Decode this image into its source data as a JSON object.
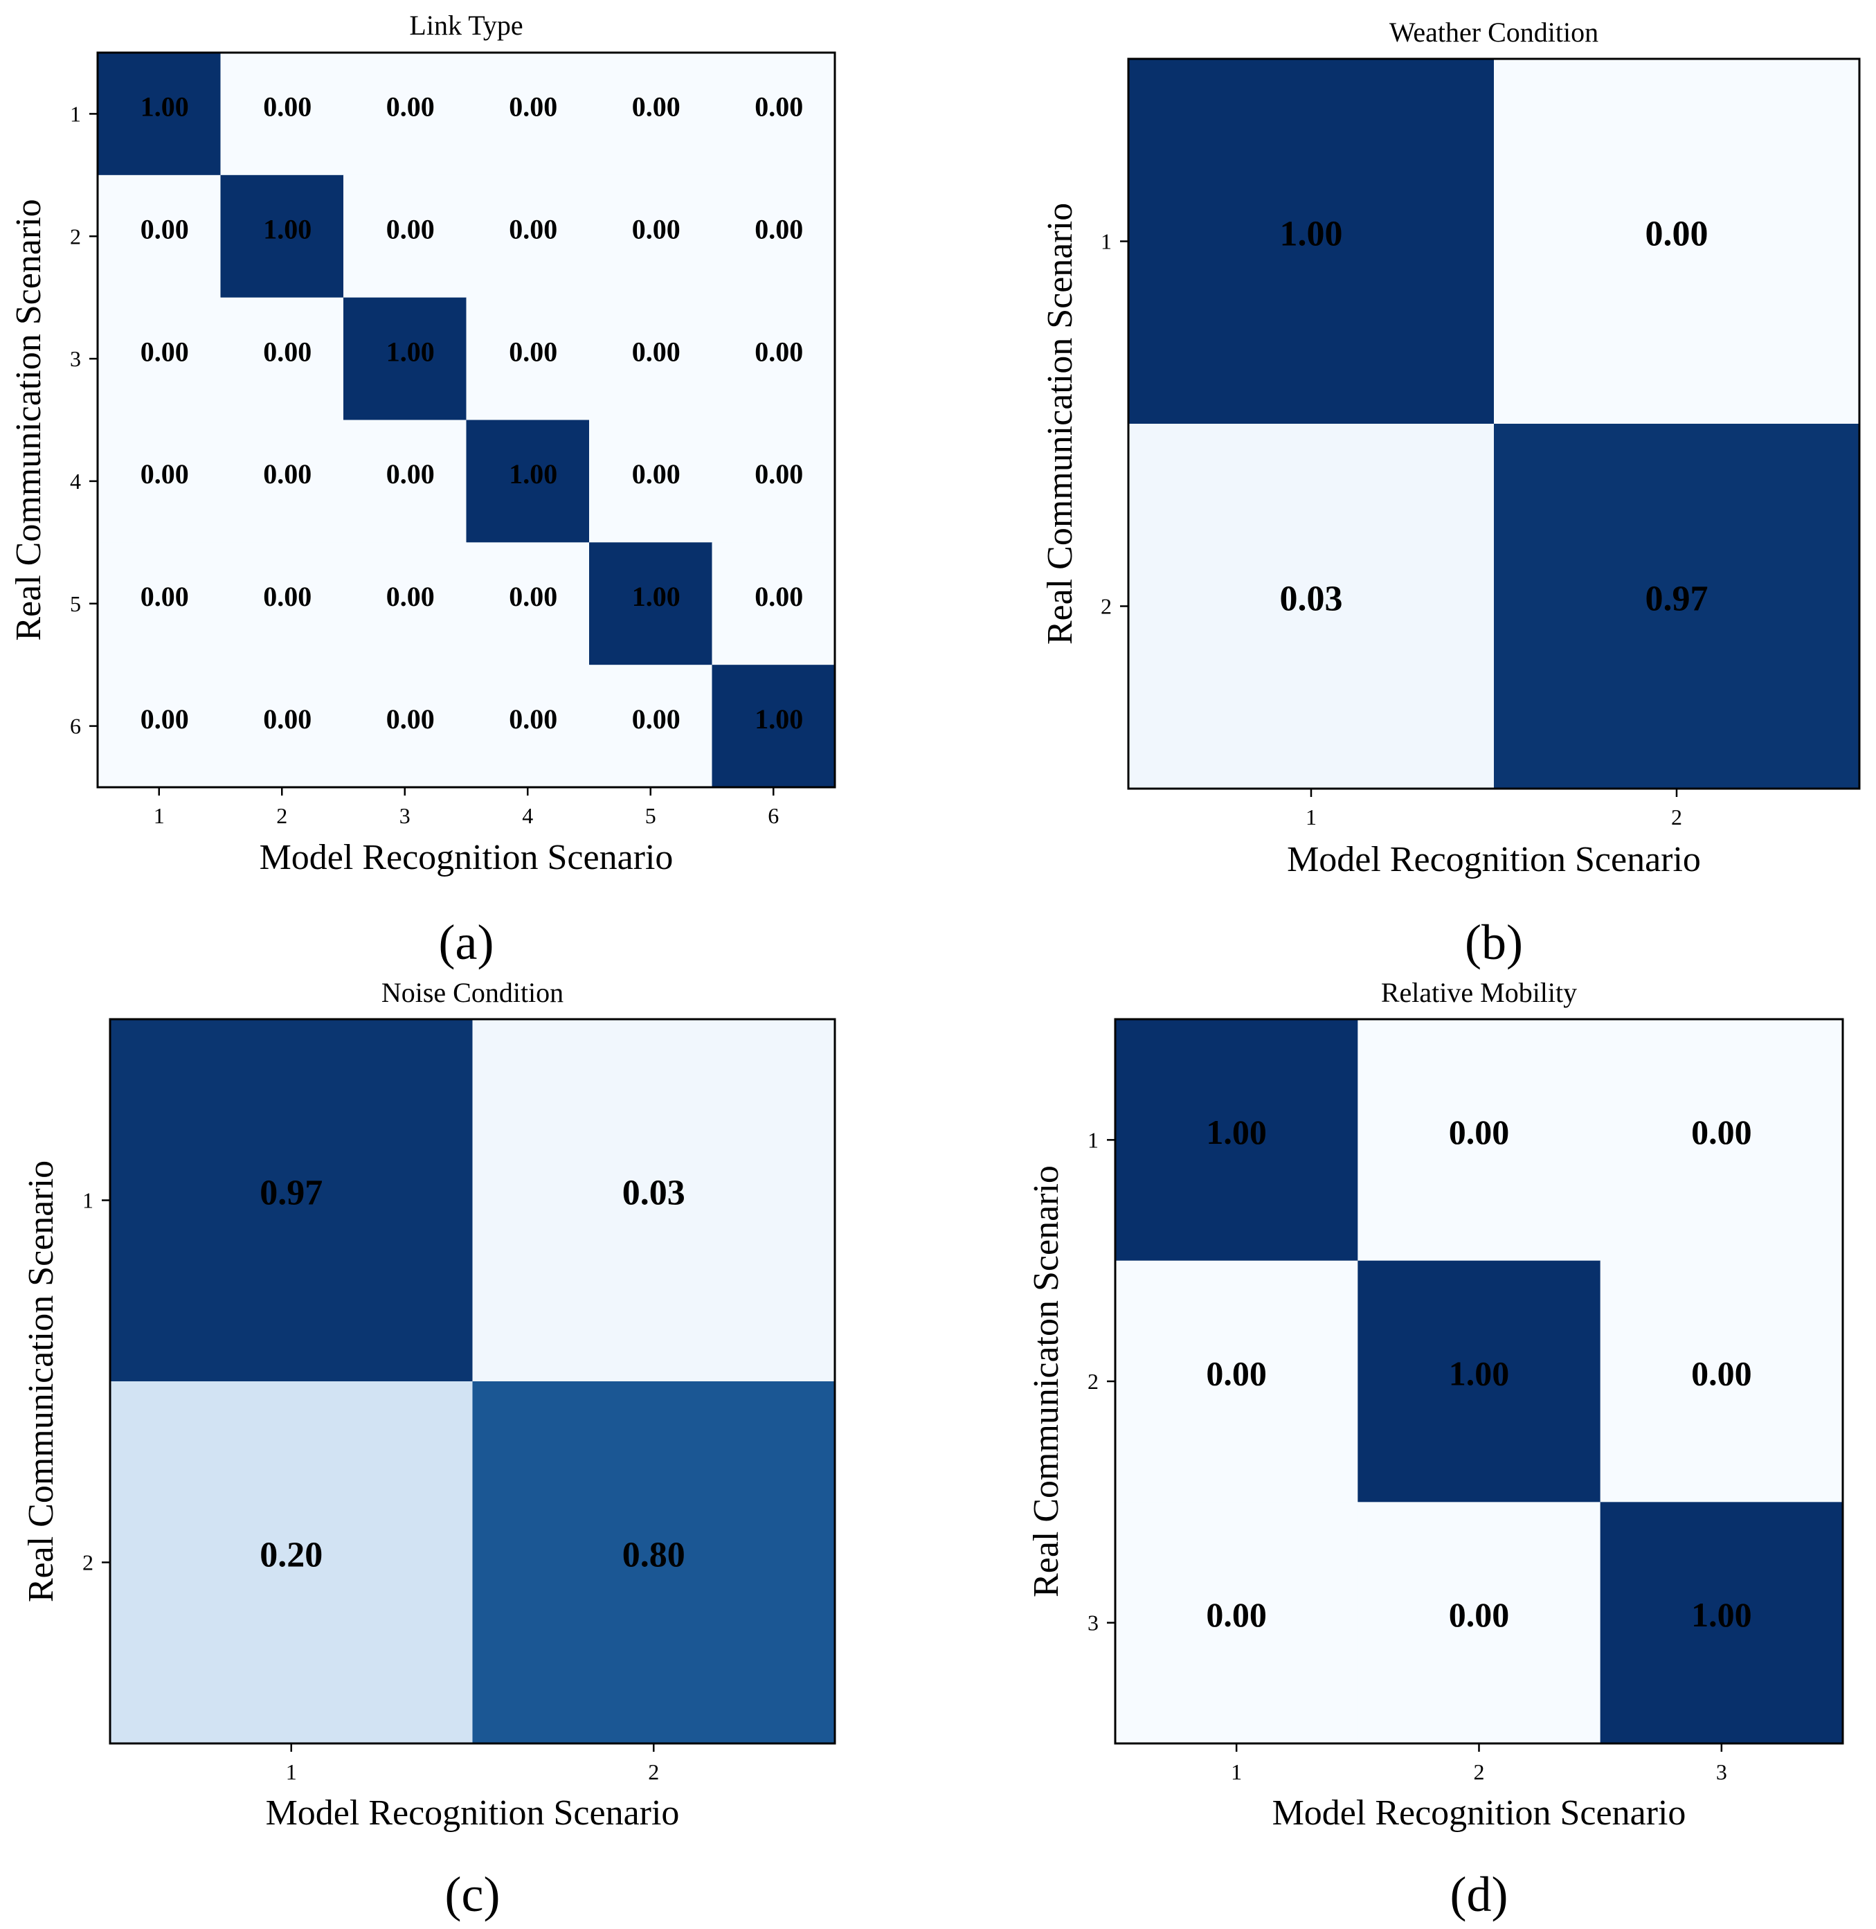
{
  "chart_data": [
    {
      "type": "heatmap",
      "id": "a",
      "title": "Link Type",
      "xlabel": "Model Recognition Scenario",
      "ylabel": "Real Communication Scenario",
      "x_ticks": [
        "1",
        "2",
        "3",
        "4",
        "5",
        "6"
      ],
      "y_ticks": [
        "1",
        "2",
        "3",
        "4",
        "5",
        "6"
      ],
      "values": [
        [
          1.0,
          0.0,
          0.0,
          0.0,
          0.0,
          0.0
        ],
        [
          0.0,
          1.0,
          0.0,
          0.0,
          0.0,
          0.0
        ],
        [
          0.0,
          0.0,
          1.0,
          0.0,
          0.0,
          0.0
        ],
        [
          0.0,
          0.0,
          0.0,
          1.0,
          0.0,
          0.0
        ],
        [
          0.0,
          0.0,
          0.0,
          0.0,
          1.0,
          0.0
        ],
        [
          0.0,
          0.0,
          0.0,
          0.0,
          0.0,
          1.0
        ]
      ],
      "labels": [
        [
          "1.00",
          "0.00",
          "0.00",
          "0.00",
          "0.00",
          "0.00"
        ],
        [
          "0.00",
          "1.00",
          "0.00",
          "0.00",
          "0.00",
          "0.00"
        ],
        [
          "0.00",
          "0.00",
          "1.00",
          "0.00",
          "0.00",
          "0.00"
        ],
        [
          "0.00",
          "0.00",
          "0.00",
          "1.00",
          "0.00",
          "0.00"
        ],
        [
          "0.00",
          "0.00",
          "0.00",
          "0.00",
          "1.00",
          "0.00"
        ],
        [
          "0.00",
          "0.00",
          "0.00",
          "0.00",
          "0.00",
          "1.00"
        ]
      ],
      "colormap": "Blues",
      "vmin": 0,
      "vmax": 1,
      "panel_label": "(a)"
    },
    {
      "type": "heatmap",
      "id": "b",
      "title": "Weather Condition",
      "xlabel": "Model Recognition Scenario",
      "ylabel": "Real Communication Scenario",
      "x_ticks": [
        "1",
        "2"
      ],
      "y_ticks": [
        "1",
        "2"
      ],
      "values": [
        [
          1.0,
          0.0
        ],
        [
          0.03,
          0.97
        ]
      ],
      "labels": [
        [
          "1.00",
          "0.00"
        ],
        [
          "0.03",
          "0.97"
        ]
      ],
      "colormap": "Blues",
      "vmin": 0,
      "vmax": 1,
      "panel_label": "(b)"
    },
    {
      "type": "heatmap",
      "id": "c",
      "title": "Noise Condition",
      "xlabel": "Model Recognition Scenario",
      "ylabel": "Real Communication Scenario",
      "x_ticks": [
        "1",
        "2"
      ],
      "y_ticks": [
        "1",
        "2"
      ],
      "values": [
        [
          0.97,
          0.03
        ],
        [
          0.2,
          0.8
        ]
      ],
      "labels": [
        [
          "0.97",
          "0.03"
        ],
        [
          "0.20",
          "0.80"
        ]
      ],
      "colormap": "Blues",
      "vmin": 0,
      "vmax": 1,
      "panel_label": "(c)"
    },
    {
      "type": "heatmap",
      "id": "d",
      "title": "Relative Mobility",
      "xlabel": "Model Recognition Scenario",
      "ylabel": "Real Communicaton Scenario",
      "x_ticks": [
        "1",
        "2",
        "3"
      ],
      "y_ticks": [
        "1",
        "2",
        "3"
      ],
      "values": [
        [
          1.0,
          0.0,
          0.0
        ],
        [
          0.0,
          1.0,
          0.0
        ],
        [
          0.0,
          0.0,
          1.0
        ]
      ],
      "labels": [
        [
          "1.00",
          "0.00",
          "0.00"
        ],
        [
          "0.00",
          "1.00",
          "0.00"
        ],
        [
          "0.00",
          "0.00",
          "1.00"
        ]
      ],
      "colormap": "Blues",
      "vmin": 0,
      "vmax": 1,
      "panel_label": "(d)"
    }
  ],
  "colors": {
    "scale_low": "#f7fbff",
    "scale_mid_light": "#d2e3f3",
    "scale_mid": "#2e7ebc",
    "scale_high": "#08306b"
  }
}
